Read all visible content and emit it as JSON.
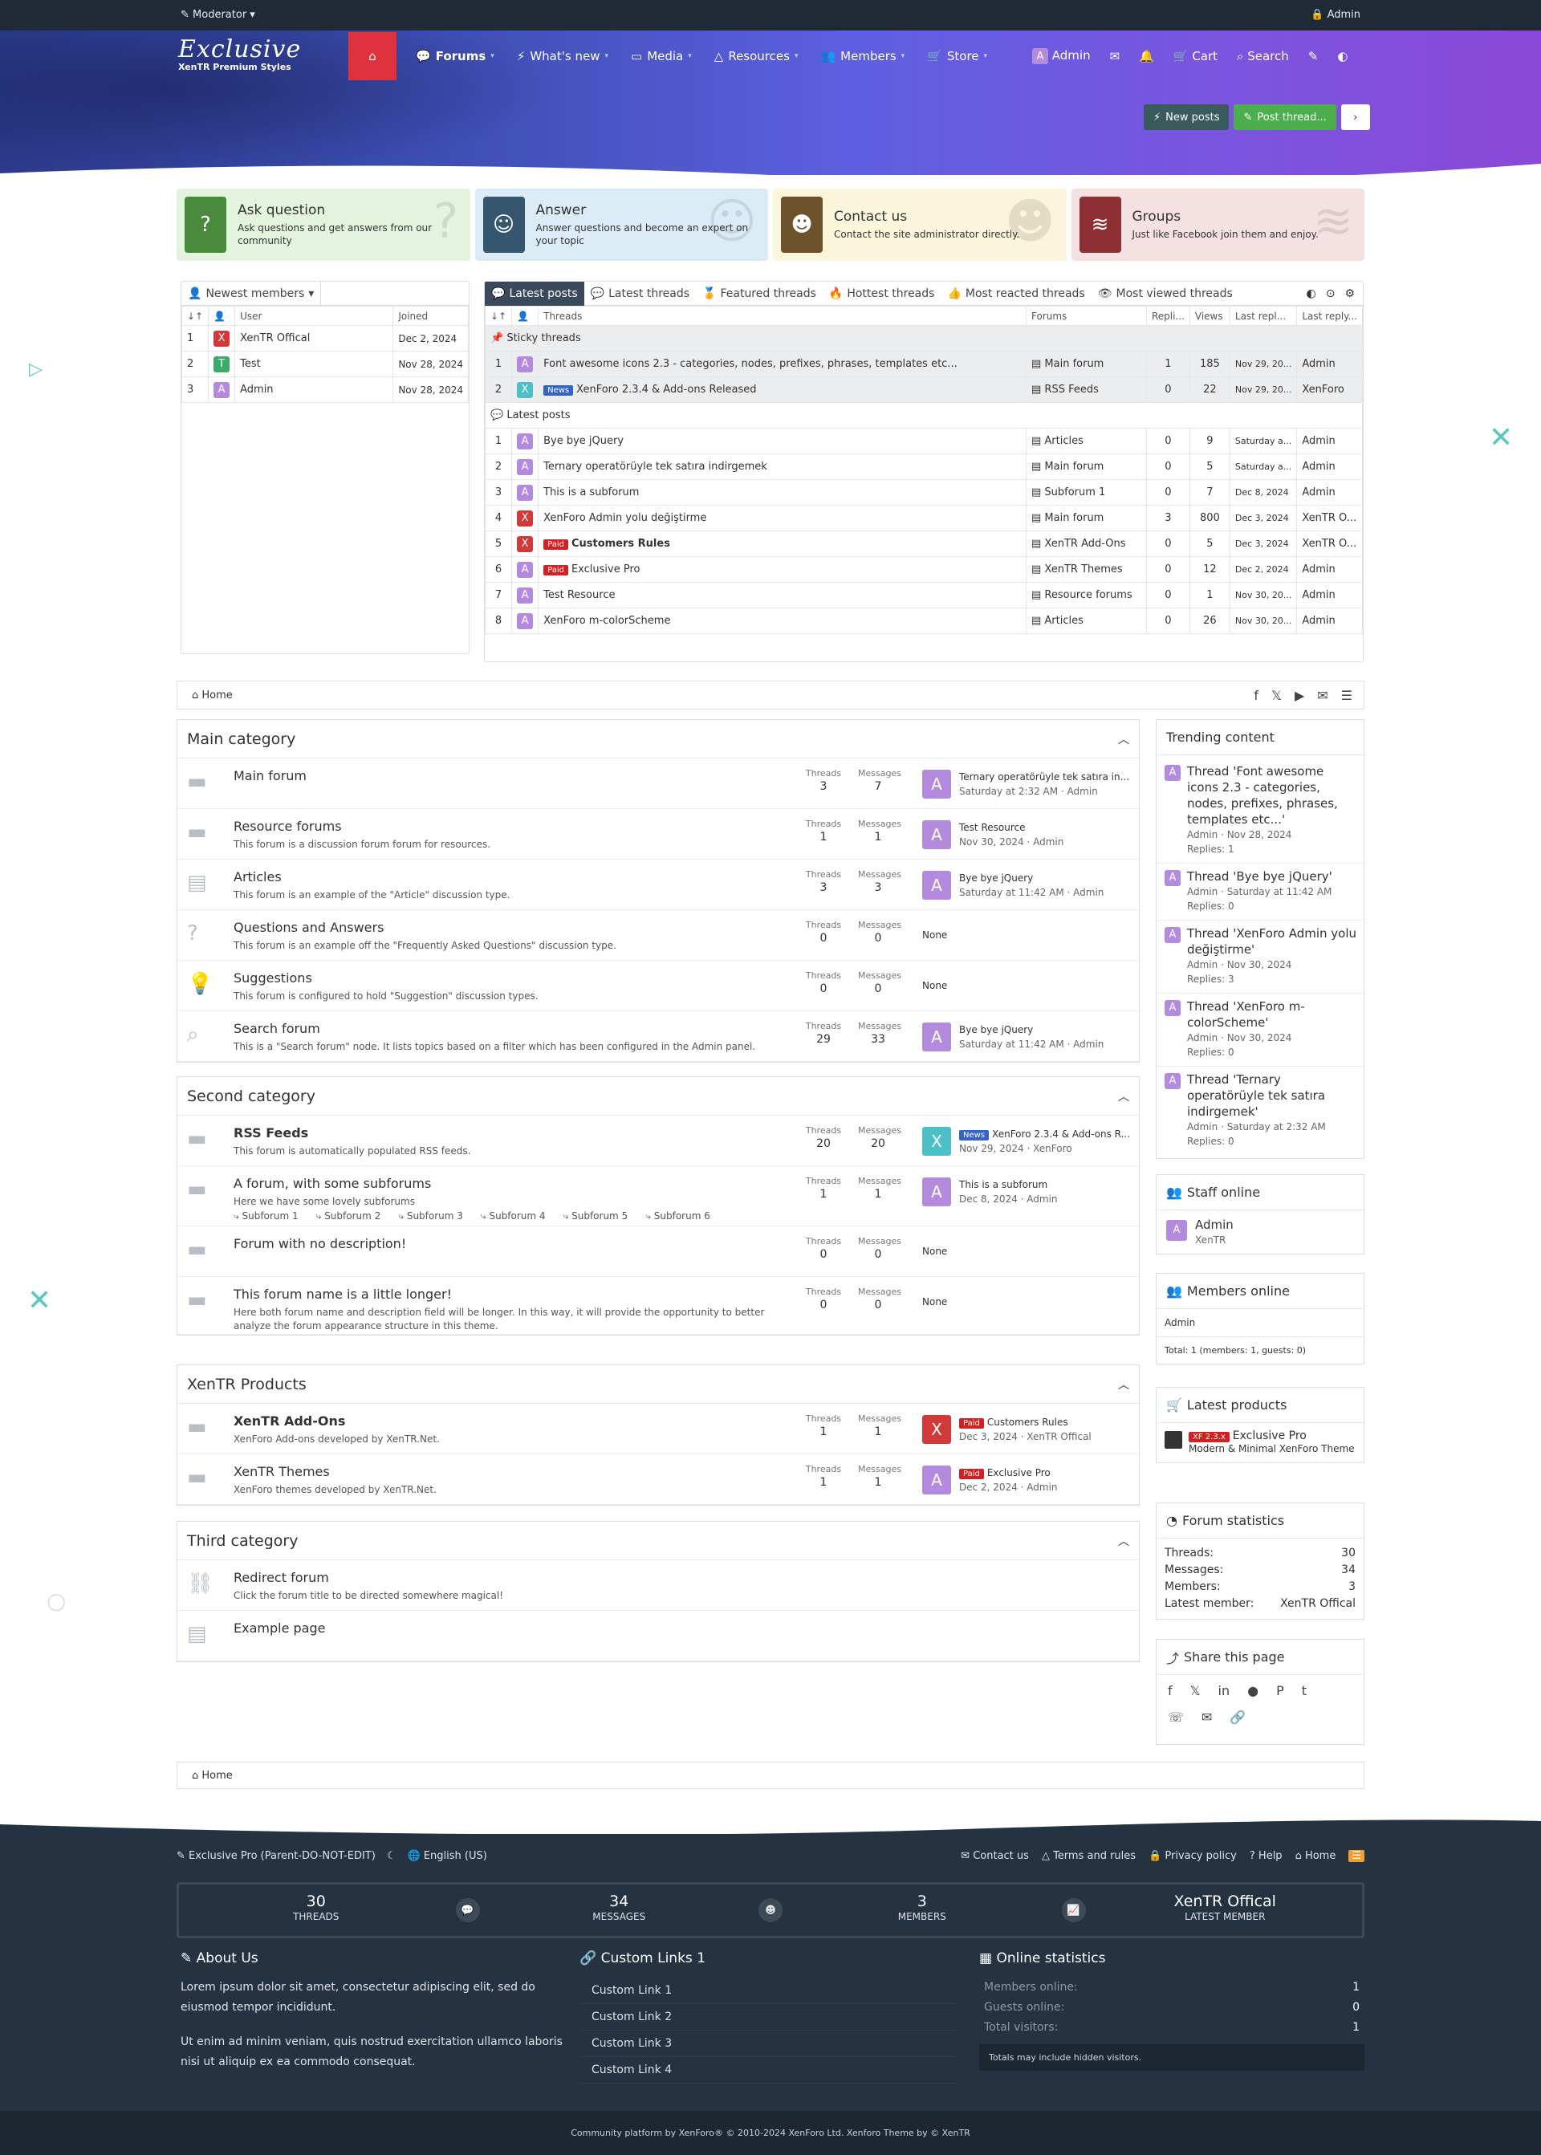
{
  "topbar": {
    "moderator": "Moderator",
    "admin": "Admin"
  },
  "logo": {
    "title": "Exclusive",
    "subtitle": "XenTR Premium Styles"
  },
  "nav": {
    "items": [
      "Forums",
      "What's new",
      "Media",
      "Resources",
      "Members",
      "Store"
    ],
    "user": "Admin",
    "cart": "Cart",
    "search": "Search"
  },
  "actions": {
    "new_posts": "New posts",
    "post_thread": "Post thread..."
  },
  "cards": [
    {
      "title": "Ask question",
      "desc": "Ask questions and get answers from our community",
      "icon": "question-icon",
      "bg": "#e4f3de",
      "ic": "#4a8a3c"
    },
    {
      "title": "Answer",
      "desc": "Answer questions and become an expert on your topic",
      "icon": "chat-bubble-icon",
      "bg": "#dcecf7",
      "ic": "#36556e"
    },
    {
      "title": "Contact us",
      "desc": "Contact the site administrator directly.",
      "icon": "contact-icon",
      "bg": "#fbf5dc",
      "ic": "#6e522c"
    },
    {
      "title": "Groups",
      "desc": "Just like Facebook join them and enjoy.",
      "icon": "layers-icon",
      "bg": "#f6e1e2",
      "ic": "#8e2f33"
    }
  ],
  "newest_members": {
    "tab": "Newest members",
    "headers": [
      "User",
      "Joined"
    ],
    "rows": [
      {
        "n": "1",
        "user": "XenTR Offical",
        "joined": "Dec 2, 2024",
        "av": "X"
      },
      {
        "n": "2",
        "user": "Test",
        "joined": "Nov 28, 2024",
        "av": "T"
      },
      {
        "n": "3",
        "user": "Admin",
        "joined": "Nov 28, 2024",
        "av": "A"
      }
    ]
  },
  "thread_tabs": [
    "Latest posts",
    "Latest threads",
    "Featured threads",
    "Hottest threads",
    "Most reacted threads",
    "Most viewed threads"
  ],
  "thread_headers": [
    "Threads",
    "Forums",
    "Repli...",
    "Views",
    "Last repl...",
    "Last reply..."
  ],
  "sticky_label": "Sticky threads",
  "latest_label": "Latest posts",
  "sticky": [
    {
      "n": "1",
      "title": "Font awesome icons 2.3 - categories, nodes, prefixes, phrases, templates etc...",
      "forum": "Main forum",
      "r": "1",
      "v": "185",
      "d": "Nov 29, 20...",
      "u": "Admin",
      "av": "A",
      "badge": ""
    },
    {
      "n": "2",
      "title": "XenForo 2.3.4 & Add-ons Released",
      "forum": "RSS Feeds",
      "r": "0",
      "v": "22",
      "d": "Nov 29, 20...",
      "u": "XenForo",
      "av": "X",
      "badge": "News"
    }
  ],
  "latest": [
    {
      "n": "1",
      "title": "Bye bye jQuery",
      "forum": "Articles",
      "r": "0",
      "v": "9",
      "d": "Saturday a...",
      "u": "Admin",
      "av": "A",
      "badge": ""
    },
    {
      "n": "2",
      "title": "Ternary operatörüyle tek satıra indirgemek",
      "forum": "Main forum",
      "r": "0",
      "v": "5",
      "d": "Saturday a...",
      "u": "Admin",
      "av": "A",
      "badge": ""
    },
    {
      "n": "3",
      "title": "This is a subforum",
      "forum": "Subforum 1",
      "r": "0",
      "v": "7",
      "d": "Dec 8, 2024",
      "u": "Admin",
      "av": "A",
      "badge": ""
    },
    {
      "n": "4",
      "title": "XenForo Admin yolu değiştirme",
      "forum": "Main forum",
      "r": "3",
      "v": "800",
      "d": "Dec 3, 2024",
      "u": "XenTR O...",
      "av": "X",
      "badge": ""
    },
    {
      "n": "5",
      "title": "Customers Rules",
      "forum": "XenTR Add-Ons",
      "r": "0",
      "v": "5",
      "d": "Dec 3, 2024",
      "u": "XenTR O...",
      "av": "X",
      "badge": "Paid"
    },
    {
      "n": "6",
      "title": "Exclusive Pro",
      "forum": "XenTR Themes",
      "r": "0",
      "v": "12",
      "d": "Dec 2, 2024",
      "u": "Admin",
      "av": "A",
      "badge": "Paid"
    },
    {
      "n": "7",
      "title": "Test Resource",
      "forum": "Resource forums",
      "r": "0",
      "v": "1",
      "d": "Nov 30, 20...",
      "u": "Admin",
      "av": "A",
      "badge": ""
    },
    {
      "n": "8",
      "title": "XenForo m-colorScheme",
      "forum": "Articles",
      "r": "0",
      "v": "26",
      "d": "Nov 30, 20...",
      "u": "Admin",
      "av": "A",
      "badge": ""
    }
  ],
  "breadcrumb": "Home",
  "categories": [
    {
      "title": "Main category",
      "forums": [
        {
          "name": "Main forum",
          "desc": "",
          "threads": "3",
          "messages": "7",
          "lp1": "Ternary operatörüyle tek satıra in...",
          "lp2": "Saturday at 2:32 AM · Admin",
          "av": "A",
          "badge": ""
        },
        {
          "name": "Resource forums",
          "desc": "This forum is a discussion forum forum for resources.",
          "threads": "1",
          "messages": "1",
          "lp1": "Test Resource",
          "lp2": "Nov 30, 2024 · Admin",
          "av": "A",
          "badge": ""
        },
        {
          "name": "Articles",
          "desc": "This forum is an example of the \"Article\" discussion type.",
          "threads": "3",
          "messages": "3",
          "lp1": "Bye bye jQuery",
          "lp2": "Saturday at 11:42 AM · Admin",
          "av": "A",
          "badge": ""
        },
        {
          "name": "Questions and Answers",
          "desc": "This forum is an example off the \"Frequently Asked Questions\" discussion type.",
          "threads": "0",
          "messages": "0",
          "lp1": "",
          "lp2": "",
          "av": "",
          "badge": ""
        },
        {
          "name": "Suggestions",
          "desc": "This forum is configured to hold \"Suggestion\" discussion types.",
          "threads": "0",
          "messages": "0",
          "lp1": "",
          "lp2": "",
          "av": "",
          "badge": ""
        },
        {
          "name": "Search forum",
          "desc": "This is a \"Search forum\" node. It lists topics based on a filter which has been configured in the Admin panel.",
          "threads": "29",
          "messages": "33",
          "lp1": "Bye bye jQuery",
          "lp2": "Saturday at 11:42 AM · Admin",
          "av": "A",
          "badge": ""
        }
      ]
    },
    {
      "title": "Second category",
      "forums": [
        {
          "name": "RSS Feeds",
          "desc": "This forum is automatically populated RSS feeds.",
          "threads": "20",
          "messages": "20",
          "lp1": "XenForo 2.3.4 & Add-ons R...",
          "lp2": "Nov 29, 2024 · XenForo",
          "av": "X",
          "badge": "News"
        },
        {
          "name": "A forum, with some subforums",
          "desc": "Here we have some lovely subforums",
          "threads": "1",
          "messages": "1",
          "lp1": "This is a subforum",
          "lp2": "Dec 8, 2024 · Admin",
          "av": "A",
          "badge": ""
        },
        {
          "name": "Forum with no description!",
          "desc": "",
          "threads": "0",
          "messages": "0",
          "lp1": "",
          "lp2": "",
          "av": "",
          "badge": ""
        },
        {
          "name": "This forum name is a little longer!",
          "desc": "Here both forum name and description field will be longer. In this way, it will provide the opportunity to better analyze the forum appearance structure in this theme.",
          "threads": "0",
          "messages": "0",
          "lp1": "",
          "lp2": "",
          "av": "",
          "badge": ""
        }
      ]
    },
    {
      "title": "XenTR Products",
      "forums": [
        {
          "name": "XenTR Add-Ons",
          "desc": "XenForo Add-ons developed by XenTR.Net.",
          "threads": "1",
          "messages": "1",
          "lp1": "Customers Rules",
          "lp2": "Dec 3, 2024 · XenTR Offical",
          "av": "X",
          "badge": "Paid"
        },
        {
          "name": "XenTR Themes",
          "desc": "XenForo themes developed by XenTR.Net.",
          "threads": "1",
          "messages": "1",
          "lp1": "Exclusive Pro",
          "lp2": "Dec 2, 2024 · Admin",
          "av": "A",
          "badge": "Paid"
        }
      ]
    },
    {
      "title": "Third category",
      "forums": [
        {
          "name": "Redirect forum",
          "desc": "Click the forum title to be directed somewhere magical!"
        },
        {
          "name": "Example page",
          "desc": ""
        }
      ]
    }
  ],
  "subforums": [
    "Subforum 1",
    "Subforum 2",
    "Subforum 3",
    "Subforum 4",
    "Subforum 5",
    "Subforum 6"
  ],
  "labels": {
    "threads": "Threads",
    "messages": "Messages",
    "none": "None"
  },
  "trending": {
    "title": "Trending content",
    "items": [
      {
        "t": "Thread 'Font awesome icons 2.3 - categories, nodes, prefixes, phrases, templates etc...'",
        "m": "Admin · Nov 28, 2024",
        "r": "Replies: 1"
      },
      {
        "t": "Thread 'Bye bye jQuery'",
        "m": "Admin · Saturday at 11:42 AM",
        "r": "Replies: 0"
      },
      {
        "t": "Thread 'XenForo Admin yolu değiştirme'",
        "m": "Admin · Nov 30, 2024",
        "r": "Replies: 3"
      },
      {
        "t": "Thread 'XenForo m-colorScheme'",
        "m": "Admin · Nov 30, 2024",
        "r": "Replies: 0"
      },
      {
        "t": "Thread 'Ternary operatörüyle tek satıra indirgemek'",
        "m": "Admin · Saturday at 2:32 AM",
        "r": "Replies: 0"
      }
    ]
  },
  "staff": {
    "title": "Staff online",
    "name": "Admin",
    "role": "XenTR"
  },
  "members_online": {
    "title": "Members online",
    "list": "Admin",
    "total": "Total: 1 (members: 1, guests: 0)"
  },
  "latest_products": {
    "title": "Latest products",
    "badge": "XF 2.3.x",
    "name": "Exclusive Pro",
    "desc": "Modern & Minimal XenForo Theme"
  },
  "forum_stats": {
    "title": "Forum statistics",
    "rows": [
      {
        "k": "Threads:",
        "v": "30"
      },
      {
        "k": "Messages:",
        "v": "34"
      },
      {
        "k": "Members:",
        "v": "3"
      },
      {
        "k": "Latest member:",
        "v": "XenTR Offical"
      }
    ]
  },
  "share": {
    "title": "Share this page"
  },
  "footer": {
    "style": "Exclusive Pro (Parent-DO-NOT-EDIT)",
    "lang": "English (US)",
    "links": [
      "Contact us",
      "Terms and rules",
      "Privacy policy",
      "Help",
      "Home"
    ],
    "stats": [
      {
        "v": "30",
        "l": "THREADS"
      },
      {
        "v": "34",
        "l": "MESSAGES"
      },
      {
        "v": "3",
        "l": "MEMBERS"
      },
      {
        "v": "XenTR Offical",
        "l": "LATEST MEMBER"
      }
    ],
    "about_title": "About Us",
    "about_p1": "Lorem ipsum dolor sit amet, consectetur adipiscing elit, sed do eiusmod tempor incididunt.",
    "about_p2": "Ut enim ad minim veniam, quis nostrud exercitation ullamco laboris nisi ut aliquip ex ea commodo consequat.",
    "links_title": "Custom Links 1",
    "custom_links": [
      "Custom Link 1",
      "Custom Link 2",
      "Custom Link 3",
      "Custom Link 4"
    ],
    "online_title": "Online statistics",
    "online": [
      {
        "k": "Members online:",
        "v": "1"
      },
      {
        "k": "Guests online:",
        "v": "0"
      },
      {
        "k": "Total visitors:",
        "v": "1"
      }
    ],
    "online_note": "Totals may include hidden visitors.",
    "copyright": "Community platform by XenForo® © 2010-2024 XenForo Ltd. Xenforo Theme by © XenTR"
  }
}
